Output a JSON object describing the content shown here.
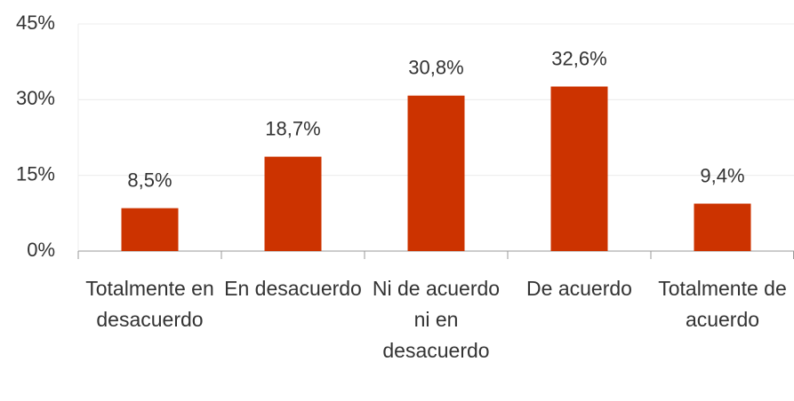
{
  "chart_data": {
    "type": "bar",
    "categories": [
      "Totalmente en desacuerdo",
      "En desacuerdo",
      "Ni de acuerdo ni en desacuerdo",
      "De acuerdo",
      "Totalmente de acuerdo"
    ],
    "values": [
      8.5,
      18.7,
      30.8,
      32.6,
      9.4
    ],
    "value_labels": [
      "8,5%",
      "18,7%",
      "30,8%",
      "32,6%",
      "9,4%"
    ],
    "color": "#cc3300",
    "ylim": [
      0,
      45
    ],
    "yticks": [
      {
        "value": 0,
        "label": "0%"
      },
      {
        "value": 15,
        "label": "15%"
      },
      {
        "value": 30,
        "label": "30%"
      },
      {
        "value": 45,
        "label": "45%"
      }
    ],
    "grid": true
  }
}
